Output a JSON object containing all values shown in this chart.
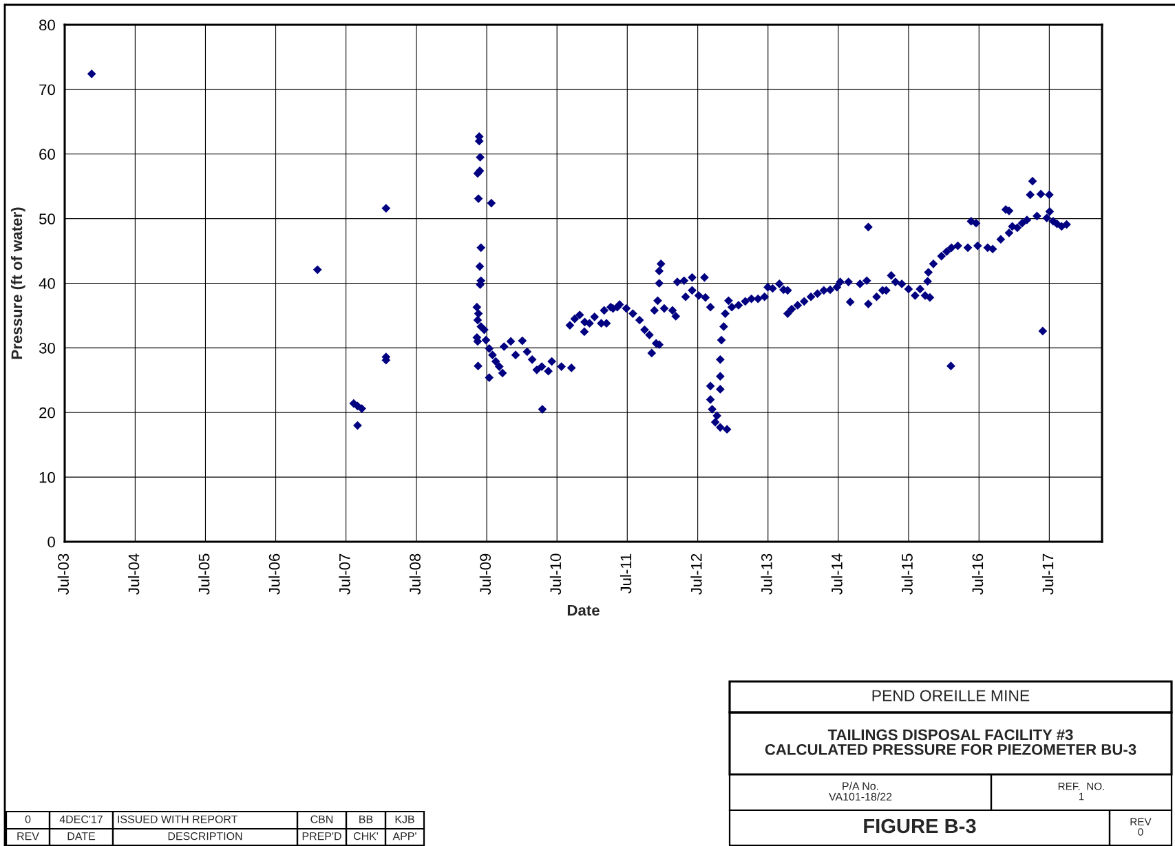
{
  "chart_data": {
    "type": "scatter",
    "title": "TAILINGS DISPOSAL FACILITY #3\nCALCULATED PRESSURE FOR PIEZOMETER BU-3",
    "xlabel": "Date",
    "ylabel": "Pressure (ft of water)",
    "annotations": [
      "PEND OREILLE MINE",
      "P/A No.\nVA101-18/22",
      "REF.  NO.\n1",
      "FIGURE B-3",
      "REV\n0",
      "0",
      "4DEC'17",
      "ISSUED WITH REPORT",
      "CBN",
      "BB",
      "KJB",
      "REV",
      "DATE",
      "DESCRIPTION",
      "PREP'D",
      "CHK'",
      "APP'"
    ],
    "x": [
      "2003-11-18",
      "2007-02-03",
      "2007-08-10",
      "2007-08-30",
      "2007-08-30",
      "2007-09-21",
      "2008-01-25",
      "2008-01-25",
      "2008-01-25",
      "2009-05-23",
      "2009-05-23",
      "2009-05-28",
      "2009-05-26",
      "2009-05-15",
      "2009-05-19",
      "2009-06-01",
      "2009-05-26",
      "2009-06-01",
      "2009-05-28",
      "2009-05-11",
      "2009-05-19",
      "2009-05-15",
      "2009-05-11",
      "2009-05-15",
      "2009-05-17",
      "2009-07-25",
      "2009-06-01",
      "2009-06-18",
      "2009-06-27",
      "2009-07-14",
      "2009-07-31",
      "2009-08-17",
      "2009-09-04",
      "2009-09-21",
      "2009-07-14",
      "2009-09-29",
      "2009-11-03",
      "2009-11-28",
      "2010-01-02",
      "2010-01-27",
      "2010-02-22",
      "2010-03-18",
      "2010-04-13",
      "2010-04-16",
      "2010-05-17",
      "2010-06-04",
      "2010-07-24",
      "2010-09-14",
      "2010-09-06",
      "2010-10-01",
      "2010-10-27",
      "2010-11-22",
      "2010-11-20",
      "2010-12-17",
      "2011-01-12",
      "2011-02-16",
      "2011-03-03",
      "2011-04-06",
      "2011-05-10",
      "2011-03-15",
      "2011-04-18",
      "2011-05-22",
      "2011-06-26",
      "2011-07-30",
      "2011-09-03",
      "2011-09-29",
      "2011-10-24",
      "2011-11-05",
      "2011-11-28",
      "2011-12-14",
      "2011-12-23",
      "2011-12-14",
      "2011-12-14",
      "2011-12-06",
      "2011-11-19",
      "2012-01-09",
      "2012-02-21",
      "2012-03-09",
      "2012-03-17",
      "2012-04-21",
      "2012-06-02",
      "2012-04-29",
      "2012-06-02",
      "2012-07-06",
      "2012-08-05",
      "2012-08-10",
      "2012-09-05",
      "2012-09-05",
      "2012-09-05",
      "2012-09-14",
      "2012-09-30",
      "2012-10-09",
      "2012-10-26",
      "2012-11-30",
      "2012-10-26",
      "2012-10-26",
      "2012-10-26",
      "2012-11-01",
      "2012-11-13",
      "2012-11-21",
      "2012-12-08",
      "2012-12-25",
      "2013-01-29",
      "2013-03-05",
      "2013-04-06",
      "2013-05-10",
      "2013-06-13",
      "2013-06-30",
      "2013-07-25",
      "2013-08-29",
      "2013-09-20",
      "2013-10-11",
      "2013-10-11",
      "2013-11-01",
      "2013-12-02",
      "2014-01-05",
      "2014-02-09",
      "2014-03-15",
      "2014-04-17",
      "2014-05-20",
      "2014-06-24",
      "2014-07-11",
      "2014-09-01",
      "2014-08-23",
      "2014-10-22",
      "2014-12-04",
      "2014-11-26",
      "2014-12-04",
      "2015-01-16",
      "2015-03-07",
      "2015-04-02",
      "2015-04-24",
      "2015-02-16",
      "2015-05-27",
      "2015-07-01",
      "2015-08-04",
      "2015-08-30",
      "2015-09-25",
      "2015-10-20",
      "2015-10-08",
      "2015-10-12",
      "2015-11-07",
      "2015-12-19",
      "2016-01-15",
      "2016-02-09",
      "2016-02-06",
      "2016-03-13",
      "2016-05-04",
      "2016-05-21",
      "2016-06-16",
      "2016-06-24",
      "2016-08-15",
      "2016-09-10",
      "2016-10-22",
      "2016-11-17",
      "2016-12-04",
      "2016-12-04",
      "2016-12-21",
      "2017-01-16",
      "2017-02-10",
      "2017-03-07",
      "2017-03-24",
      "2017-04-05",
      "2017-04-28",
      "2017-05-18",
      "2017-05-28",
      "2017-06-18",
      "2017-07-01",
      "2017-07-03",
      "2017-07-21",
      "2017-08-10",
      "2017-09-03",
      "2017-09-29"
    ],
    "series": [
      {
        "color": "#000080",
        "values": [
          72.4,
          42.1,
          21.4,
          21.0,
          18.0,
          20.6,
          51.6,
          28.6,
          28.1,
          62.7,
          62.0,
          59.5,
          57.4,
          57.0,
          53.1,
          45.5,
          42.6,
          40.4,
          39.8,
          36.3,
          35.3,
          34.3,
          31.6,
          31.0,
          27.2,
          52.4,
          33.3,
          32.8,
          31.2,
          29.9,
          28.9,
          27.9,
          27.1,
          26.1,
          25.4,
          30.2,
          31.0,
          28.9,
          31.1,
          29.4,
          28.2,
          26.6,
          27.1,
          20.5,
          26.4,
          27.9,
          27.1,
          26.9,
          33.5,
          34.5,
          35.1,
          34.0,
          32.5,
          33.8,
          34.8,
          33.8,
          35.8,
          36.3,
          36.3,
          33.8,
          36.1,
          36.7,
          36.1,
          35.3,
          34.3,
          32.8,
          32.0,
          29.2,
          30.7,
          30.5,
          43.0,
          41.9,
          40.0,
          37.3,
          35.8,
          36.1,
          35.8,
          34.9,
          40.2,
          40.4,
          40.9,
          37.9,
          38.9,
          38.1,
          40.9,
          37.8,
          36.3,
          24.1,
          22.0,
          20.5,
          18.5,
          19.5,
          17.7,
          17.4,
          23.6,
          25.6,
          28.2,
          31.2,
          33.3,
          35.3,
          37.3,
          36.3,
          36.6,
          37.2,
          37.6,
          37.6,
          37.9,
          39.4,
          39.2,
          39.9,
          39.0,
          38.9,
          35.3,
          36.0,
          36.6,
          37.2,
          37.9,
          38.4,
          38.9,
          39.0,
          39.4,
          40.2,
          37.1,
          40.2,
          39.9,
          48.7,
          40.4,
          36.8,
          37.9,
          38.9,
          41.2,
          40.2,
          38.9,
          39.9,
          39.1,
          38.1,
          39.1,
          38.1,
          37.8,
          40.3,
          41.7,
          43.0,
          44.2,
          44.9,
          45.5,
          27.2,
          45.8,
          45.5,
          49.6,
          49.3,
          45.8,
          45.5,
          45.3,
          46.8,
          51.4,
          51.2,
          47.8,
          48.8,
          48.6,
          49.3,
          49.8,
          53.7,
          55.8,
          50.4,
          53.8,
          32.6,
          50.1,
          53.7,
          51.1,
          49.6,
          49.2,
          48.8,
          49.1
        ]
      }
    ],
    "xlim": [
      "2003-07-01",
      "2018-04-01"
    ],
    "ylim": [
      0,
      80
    ],
    "xticks": [
      {
        "value": "2003-07-01",
        "label": "Jul-03"
      },
      {
        "value": "2004-07-01",
        "label": "Jul-04"
      },
      {
        "value": "2005-07-01",
        "label": "Jul-05"
      },
      {
        "value": "2006-07-01",
        "label": "Jul-06"
      },
      {
        "value": "2007-07-01",
        "label": "Jul-07"
      },
      {
        "value": "2008-07-01",
        "label": "Jul-08"
      },
      {
        "value": "2009-07-01",
        "label": "Jul-09"
      },
      {
        "value": "2010-07-01",
        "label": "Jul-10"
      },
      {
        "value": "2011-07-01",
        "label": "Jul-11"
      },
      {
        "value": "2012-07-01",
        "label": "Jul-12"
      },
      {
        "value": "2013-07-01",
        "label": "Jul-13"
      },
      {
        "value": "2014-07-01",
        "label": "Jul-14"
      },
      {
        "value": "2015-07-01",
        "label": "Jul-15"
      },
      {
        "value": "2016-07-01",
        "label": "Jul-16"
      },
      {
        "value": "2017-07-01",
        "label": "Jul-17"
      }
    ],
    "yticks": [
      0,
      10,
      20,
      30,
      40,
      50,
      60,
      70,
      80
    ],
    "grid": true,
    "marker": "diamond"
  }
}
